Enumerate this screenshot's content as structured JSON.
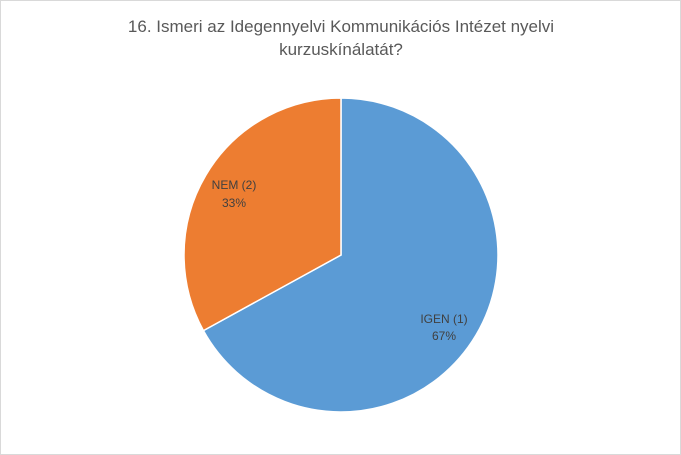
{
  "chart_data": {
    "type": "pie",
    "title_lines": [
      "16. Ismeri az Idegennyelvi Kommunikációs Intézet nyelvi",
      "kurzuskínálatát?"
    ],
    "slices": [
      {
        "label": "IGEN (1)",
        "value": 67,
        "percent_text": "67%",
        "color": "#5b9bd5"
      },
      {
        "label": "NEM (2)",
        "value": 33,
        "percent_text": "33%",
        "color": "#ed7d31"
      }
    ],
    "legend": "none"
  }
}
